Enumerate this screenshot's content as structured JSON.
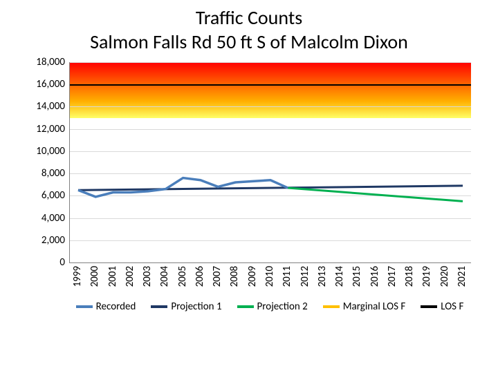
{
  "title_line1": "Traffic Counts",
  "title_line2": "Salmon Falls Rd 50 ft S of Malcolm Dixon",
  "chart": {
    "type": "line",
    "background_color": "#ffffff",
    "grid_color": "#d9d9d9",
    "axis_color": "#808080",
    "title_fontsize": 28,
    "tick_fontsize": 15,
    "legend_fontsize": 15,
    "ylim": [
      0,
      18000
    ],
    "ytick_step": 2000,
    "yticks": [
      "0",
      "2,000",
      "4,000",
      "6,000",
      "8,000",
      "10,000",
      "12,000",
      "14,000",
      "16,000",
      "18,000"
    ],
    "years": [
      "1999",
      "2000",
      "2001",
      "2002",
      "2003",
      "2004",
      "2005",
      "2006",
      "2007",
      "2008",
      "2009",
      "2010",
      "2011",
      "2012",
      "2013",
      "2014",
      "2015",
      "2016",
      "2017",
      "2018",
      "2019",
      "2020",
      "2021"
    ],
    "marginal_los_f_band": {
      "low": 13000,
      "high": 18000,
      "gradient_top": "#ff0000",
      "gradient_bottom": "#ffff66"
    },
    "los_f_value": 16000,
    "los_f_color": "#000000",
    "series": {
      "recorded": {
        "label": "Recorded",
        "color": "#4a7ebb",
        "width": 3.5,
        "data": [
          [
            1999,
            6500
          ],
          [
            2000,
            5900
          ],
          [
            2001,
            6300
          ],
          [
            2002,
            6300
          ],
          [
            2003,
            6400
          ],
          [
            2004,
            6600
          ],
          [
            2005,
            7600
          ],
          [
            2006,
            7400
          ],
          [
            2007,
            6800
          ],
          [
            2008,
            7200
          ],
          [
            2009,
            7300
          ],
          [
            2010,
            7400
          ],
          [
            2011,
            6700
          ]
        ]
      },
      "projection1": {
        "label": "Projection 1",
        "color": "#1f3864",
        "width": 3,
        "data": [
          [
            1999,
            6500
          ],
          [
            2021,
            6900
          ]
        ]
      },
      "projection2": {
        "label": "Projection 2",
        "color": "#00b050",
        "width": 3,
        "data": [
          [
            2011,
            6700
          ],
          [
            2021,
            5500
          ]
        ]
      }
    },
    "legend_items": [
      {
        "label": "Recorded",
        "color": "#4a7ebb"
      },
      {
        "label": "Projection 1",
        "color": "#1f3864"
      },
      {
        "label": "Projection 2",
        "color": "#00b050"
      },
      {
        "label": "Marginal LOS F",
        "color": "#ffc000"
      },
      {
        "label": "LOS F",
        "color": "#000000"
      }
    ]
  }
}
